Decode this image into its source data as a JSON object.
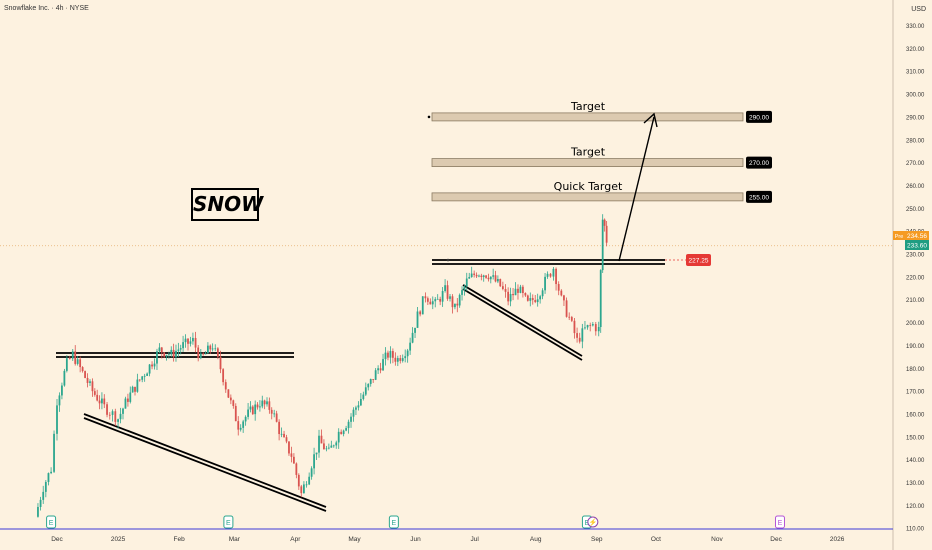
{
  "header": {
    "ticker_line": "Snowflake Inc. · 4h · NYSE",
    "currency": "USD"
  },
  "chart_data": {
    "type": "candlestick",
    "symbol_label": "SNOW",
    "y_axis": {
      "min": 110,
      "max": 330,
      "ticks": [
        "330.00",
        "320.00",
        "310.00",
        "300.00",
        "290.00",
        "280.00",
        "270.00",
        "260.00",
        "250.00",
        "240.00",
        "230.00",
        "220.00",
        "210.00",
        "200.00",
        "190.00",
        "180.00",
        "170.00",
        "160.00",
        "150.00",
        "140.00",
        "130.00",
        "120.00",
        "110.00"
      ]
    },
    "x_axis": {
      "ticks": [
        "Dec",
        "2025",
        "Feb",
        "Mar",
        "Apr",
        "May",
        "Jun",
        "Jul",
        "Aug",
        "Sep",
        "Oct",
        "Nov",
        "Dec",
        "2026"
      ]
    },
    "price_path": [
      [
        "2024-11-20",
        115
      ],
      [
        "2024-11-24",
        128
      ],
      [
        "2024-11-28",
        136
      ],
      [
        "2024-12-01",
        166
      ],
      [
        "2024-12-06",
        182
      ],
      [
        "2024-12-09",
        186
      ],
      [
        "2024-12-14",
        178
      ],
      [
        "2024-12-19",
        170
      ],
      [
        "2024-12-25",
        163
      ],
      [
        "2025-01-01",
        158
      ],
      [
        "2025-01-06",
        167
      ],
      [
        "2025-01-12",
        175
      ],
      [
        "2025-01-17",
        181
      ],
      [
        "2025-01-22",
        188
      ],
      [
        "2025-01-28",
        186
      ],
      [
        "2025-02-03",
        190
      ],
      [
        "2025-02-08",
        192
      ],
      [
        "2025-02-12",
        184
      ],
      [
        "2025-02-18",
        190
      ],
      [
        "2025-02-22",
        180
      ],
      [
        "2025-02-26",
        168
      ],
      [
        "2025-03-03",
        155
      ],
      [
        "2025-03-08",
        160
      ],
      [
        "2025-03-14",
        165
      ],
      [
        "2025-03-20",
        162
      ],
      [
        "2025-03-25",
        150
      ],
      [
        "2025-03-30",
        142
      ],
      [
        "2025-04-04",
        125
      ],
      [
        "2025-04-08",
        135
      ],
      [
        "2025-04-13",
        148
      ],
      [
        "2025-04-18",
        143
      ],
      [
        "2025-04-23",
        152
      ],
      [
        "2025-04-28",
        157
      ],
      [
        "2025-05-03",
        165
      ],
      [
        "2025-05-08",
        172
      ],
      [
        "2025-05-13",
        180
      ],
      [
        "2025-05-18",
        186
      ],
      [
        "2025-05-23",
        184
      ],
      [
        "2025-05-28",
        189
      ],
      [
        "2025-06-02",
        203
      ],
      [
        "2025-06-06",
        212
      ],
      [
        "2025-06-11",
        208
      ],
      [
        "2025-06-16",
        214
      ],
      [
        "2025-06-21",
        206
      ],
      [
        "2025-06-27",
        218
      ],
      [
        "2025-07-02",
        222
      ],
      [
        "2025-07-08",
        221
      ],
      [
        "2025-07-14",
        216
      ],
      [
        "2025-07-18",
        210
      ],
      [
        "2025-07-23",
        215
      ],
      [
        "2025-07-28",
        208
      ],
      [
        "2025-08-02",
        212
      ],
      [
        "2025-08-07",
        220
      ],
      [
        "2025-08-10",
        224
      ],
      [
        "2025-08-14",
        210
      ],
      [
        "2025-08-18",
        202
      ],
      [
        "2025-08-22",
        192
      ],
      [
        "2025-08-26",
        197
      ],
      [
        "2025-08-30",
        199
      ],
      [
        "2025-09-02",
        197
      ],
      [
        "2025-09-03",
        222
      ],
      [
        "2025-09-04",
        245
      ],
      [
        "2025-09-05",
        242
      ],
      [
        "2025-09-06",
        236
      ]
    ],
    "levels": [
      {
        "label": "Target",
        "value": 290,
        "badge": "290.00"
      },
      {
        "label": "Target",
        "value": 270,
        "badge": "270.00"
      },
      {
        "label": "Quick Target",
        "value": 255,
        "badge": "255.00"
      }
    ],
    "breakout_level": {
      "value": 227.25,
      "badge": "227.25"
    },
    "current_price": {
      "pre_label": "Pre",
      "pre_value": "234.56",
      "last": "233.60"
    },
    "earnings_markers": [
      {
        "date": "2024-11-28",
        "label": "E"
      },
      {
        "date": "2025-02-26",
        "label": "E"
      },
      {
        "date": "2025-05-21",
        "label": "E"
      },
      {
        "date": "2025-08-27",
        "label": "E"
      },
      {
        "date": "2025-08-30",
        "label": "⚡"
      },
      {
        "date": "2025-12-03",
        "label": "E"
      }
    ]
  },
  "colors": {
    "background": "#fdf2e0",
    "up": "#2ca68e",
    "down": "#d9534f",
    "level_fill": "#dccab0",
    "badge": "#000000",
    "breakout_badge": "#e53935",
    "pre_badge": "#f59b23",
    "last_badge": "#1f9d82"
  }
}
